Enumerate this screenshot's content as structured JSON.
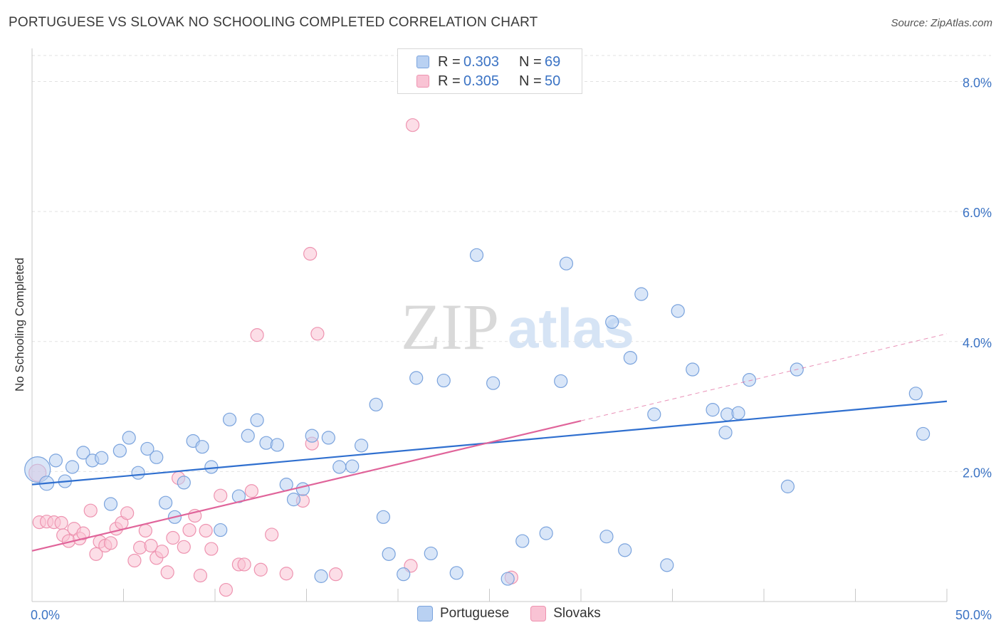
{
  "title": "PORTUGUESE VS SLOVAK NO SCHOOLING COMPLETED CORRELATION CHART",
  "source": "Source: ZipAtlas.com",
  "watermark": {
    "zip": "ZIP",
    "atlas": "atlas"
  },
  "legend": {
    "r_label": "R =",
    "n_label": "N =",
    "entries": [
      {
        "name": "Portuguese",
        "r": "0.303",
        "n": "69",
        "fill": "#b9d1f2",
        "stroke": "#7aa3dd"
      },
      {
        "name": "Slovaks",
        "r": "0.305",
        "n": "50",
        "fill": "#f9c3d4",
        "stroke": "#ee93b0"
      }
    ]
  },
  "colors": {
    "blue_line": "#2f6fcf",
    "pink_line": "#e0649a",
    "blue_fill": "#b9d1f2",
    "blue_stroke": "#7aa3dd",
    "pink_fill": "#f9c3d4",
    "pink_stroke": "#ee93b0",
    "tick_label": "#3b73c4"
  },
  "chart_data": {
    "type": "scatter",
    "title": "PORTUGUESE VS SLOVAK NO SCHOOLING COMPLETED CORRELATION CHART",
    "xlabel": "",
    "ylabel": "No Schooling Completed",
    "xlim": [
      0,
      50
    ],
    "ylim": [
      0,
      8.4
    ],
    "x_tick_labels": [
      {
        "v": 0,
        "t": "0.0%"
      },
      {
        "v": 50,
        "t": "50.0%"
      }
    ],
    "y_tick_labels": [
      {
        "v": 2,
        "t": "2.0%"
      },
      {
        "v": 4,
        "t": "4.0%"
      },
      {
        "v": 6,
        "t": "6.0%"
      },
      {
        "v": 8,
        "t": "8.0%"
      }
    ],
    "series": [
      {
        "name": "Portuguese",
        "trend": {
          "x0": 0,
          "y0": 1.8,
          "x1": 50,
          "y1": 3.08
        },
        "points": [
          [
            0.3,
            2.03,
            18
          ],
          [
            0.8,
            1.82,
            10
          ],
          [
            1.3,
            2.17,
            9
          ],
          [
            1.8,
            1.85,
            9
          ],
          [
            2.2,
            2.07,
            9
          ],
          [
            2.8,
            2.29,
            9
          ],
          [
            3.3,
            2.17,
            9
          ],
          [
            3.8,
            2.21,
            9
          ],
          [
            4.3,
            1.5,
            9
          ],
          [
            4.8,
            2.32,
            9
          ],
          [
            5.3,
            2.52,
            9
          ],
          [
            5.8,
            1.98,
            9
          ],
          [
            6.3,
            2.35,
            9
          ],
          [
            6.8,
            2.22,
            9
          ],
          [
            7.3,
            1.52,
            9
          ],
          [
            7.8,
            1.3,
            9
          ],
          [
            8.3,
            1.83,
            9
          ],
          [
            8.8,
            2.47,
            9
          ],
          [
            9.3,
            2.38,
            9
          ],
          [
            9.8,
            2.07,
            9
          ],
          [
            10.3,
            1.1,
            9
          ],
          [
            10.8,
            2.8,
            9
          ],
          [
            11.3,
            1.62,
            9
          ],
          [
            11.8,
            2.55,
            9
          ],
          [
            12.3,
            2.79,
            9
          ],
          [
            12.8,
            2.44,
            9
          ],
          [
            13.4,
            2.41,
            9
          ],
          [
            13.9,
            1.8,
            9
          ],
          [
            14.3,
            1.57,
            9
          ],
          [
            14.8,
            1.73,
            9
          ],
          [
            15.3,
            2.55,
            9
          ],
          [
            15.8,
            0.39,
            9
          ],
          [
            16.2,
            2.52,
            9
          ],
          [
            16.8,
            2.07,
            9
          ],
          [
            17.5,
            2.08,
            9
          ],
          [
            18.0,
            2.4,
            9
          ],
          [
            18.8,
            3.03,
            9
          ],
          [
            19.5,
            0.73,
            9
          ],
          [
            19.2,
            1.3,
            9
          ],
          [
            20.3,
            0.42,
            9
          ],
          [
            21.0,
            3.44,
            9
          ],
          [
            21.8,
            0.74,
            9
          ],
          [
            22.5,
            3.4,
            9
          ],
          [
            23.2,
            0.44,
            9
          ],
          [
            24.3,
            5.33,
            9
          ],
          [
            25.2,
            3.36,
            9
          ],
          [
            26.0,
            0.35,
            9
          ],
          [
            26.8,
            0.93,
            9
          ],
          [
            28.1,
            1.05,
            9
          ],
          [
            28.9,
            3.39,
            9
          ],
          [
            29.2,
            5.2,
            9
          ],
          [
            31.4,
            1.0,
            9
          ],
          [
            31.7,
            4.3,
            9
          ],
          [
            32.4,
            0.79,
            9
          ],
          [
            32.7,
            3.75,
            9
          ],
          [
            33.3,
            4.73,
            9
          ],
          [
            34.0,
            2.88,
            9
          ],
          [
            34.7,
            0.56,
            9
          ],
          [
            35.3,
            4.47,
            9
          ],
          [
            36.1,
            3.57,
            9
          ],
          [
            37.2,
            2.95,
            9
          ],
          [
            37.9,
            2.6,
            9
          ],
          [
            38.0,
            2.88,
            9
          ],
          [
            38.6,
            2.9,
            9
          ],
          [
            39.2,
            3.41,
            9
          ],
          [
            41.3,
            1.77,
            9
          ],
          [
            41.8,
            3.57,
            9
          ],
          [
            48.3,
            3.2,
            9
          ],
          [
            48.7,
            2.58,
            9
          ]
        ]
      },
      {
        "name": "Slovaks",
        "trend": {
          "x0": 0,
          "y0": 0.78,
          "x1": 30,
          "y1": 2.78
        },
        "trend_ext": {
          "x0": 30,
          "y0": 2.78,
          "x1": 50,
          "y1": 4.12
        },
        "points": [
          [
            0.3,
            1.98,
            12
          ],
          [
            0.4,
            1.22,
            9
          ],
          [
            0.8,
            1.23,
            9
          ],
          [
            1.2,
            1.22,
            9
          ],
          [
            1.6,
            1.21,
            9
          ],
          [
            1.7,
            1.02,
            9
          ],
          [
            2.0,
            0.93,
            9
          ],
          [
            2.3,
            1.12,
            9
          ],
          [
            2.6,
            0.97,
            9
          ],
          [
            2.8,
            1.05,
            9
          ],
          [
            3.2,
            1.4,
            9
          ],
          [
            3.5,
            0.73,
            9
          ],
          [
            3.7,
            0.92,
            9
          ],
          [
            4.0,
            0.86,
            9
          ],
          [
            4.3,
            0.9,
            9
          ],
          [
            4.6,
            1.12,
            9
          ],
          [
            4.9,
            1.21,
            9
          ],
          [
            5.2,
            1.36,
            9
          ],
          [
            5.6,
            0.63,
            9
          ],
          [
            5.9,
            0.83,
            9
          ],
          [
            6.2,
            1.09,
            9
          ],
          [
            6.5,
            0.86,
            9
          ],
          [
            6.8,
            0.67,
            9
          ],
          [
            7.1,
            0.77,
            9
          ],
          [
            7.4,
            0.45,
            9
          ],
          [
            7.7,
            0.98,
            9
          ],
          [
            8.0,
            1.9,
            9
          ],
          [
            8.3,
            0.84,
            9
          ],
          [
            8.6,
            1.1,
            9
          ],
          [
            8.9,
            1.32,
            9
          ],
          [
            9.2,
            0.4,
            9
          ],
          [
            9.5,
            1.09,
            9
          ],
          [
            9.8,
            0.81,
            9
          ],
          [
            10.3,
            1.63,
            9
          ],
          [
            10.6,
            0.18,
            9
          ],
          [
            11.3,
            0.57,
            9
          ],
          [
            11.6,
            0.57,
            9
          ],
          [
            12.0,
            1.7,
            9
          ],
          [
            12.3,
            4.1,
            9
          ],
          [
            12.5,
            0.49,
            9
          ],
          [
            13.1,
            1.03,
            9
          ],
          [
            13.9,
            0.43,
            9
          ],
          [
            14.8,
            1.55,
            9
          ],
          [
            15.2,
            5.35,
            9
          ],
          [
            15.3,
            2.43,
            9
          ],
          [
            15.6,
            4.12,
            9
          ],
          [
            16.6,
            0.42,
            9
          ],
          [
            20.7,
            0.55,
            9
          ],
          [
            20.8,
            7.33,
            9
          ],
          [
            26.2,
            0.37,
            9
          ]
        ]
      }
    ]
  }
}
